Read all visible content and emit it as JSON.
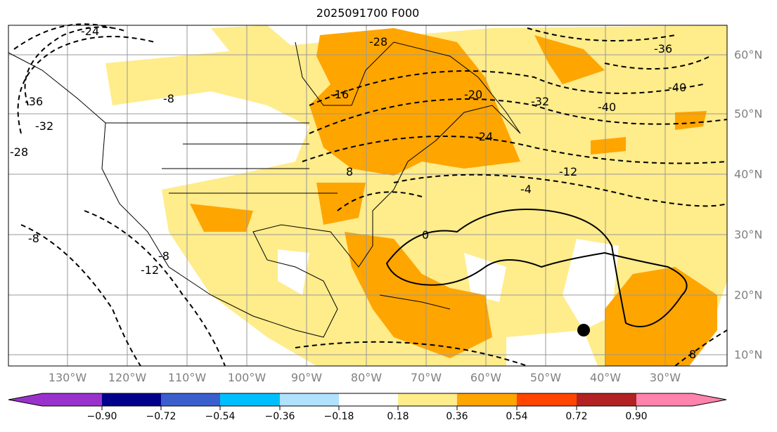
{
  "title": "2025091700 F000",
  "lon_labels": [
    "130°W",
    "120°W",
    "110°W",
    "100°W",
    "90°W",
    "80°W",
    "70°W",
    "60°W",
    "50°W",
    "40°W",
    "30°W"
  ],
  "lat_labels": [
    "60°N",
    "50°N",
    "40°N",
    "30°N",
    "20°N",
    "10°N"
  ],
  "contour_labels": [
    "-24",
    "-36",
    "-32",
    "-28",
    "-8",
    "-16",
    "-20",
    "-24",
    "-28",
    "-32",
    "-36",
    "-40",
    "-40",
    "-12",
    "-4",
    "0",
    "8",
    "-8",
    "-12",
    "-8",
    "8"
  ],
  "colorbar": {
    "ticks": [
      "−0.90",
      "−0.72",
      "−0.54",
      "−0.36",
      "−0.18",
      "0.18",
      "0.36",
      "0.54",
      "0.72",
      "0.90"
    ],
    "colors": [
      "#9932cc",
      "#00008b",
      "#3a5fcd",
      "#00bfff",
      "#b0e2ff",
      "#ffffff",
      "#ffec8b",
      "#ffa500",
      "#ff4500",
      "#b22222",
      "#ff83ac"
    ]
  }
}
